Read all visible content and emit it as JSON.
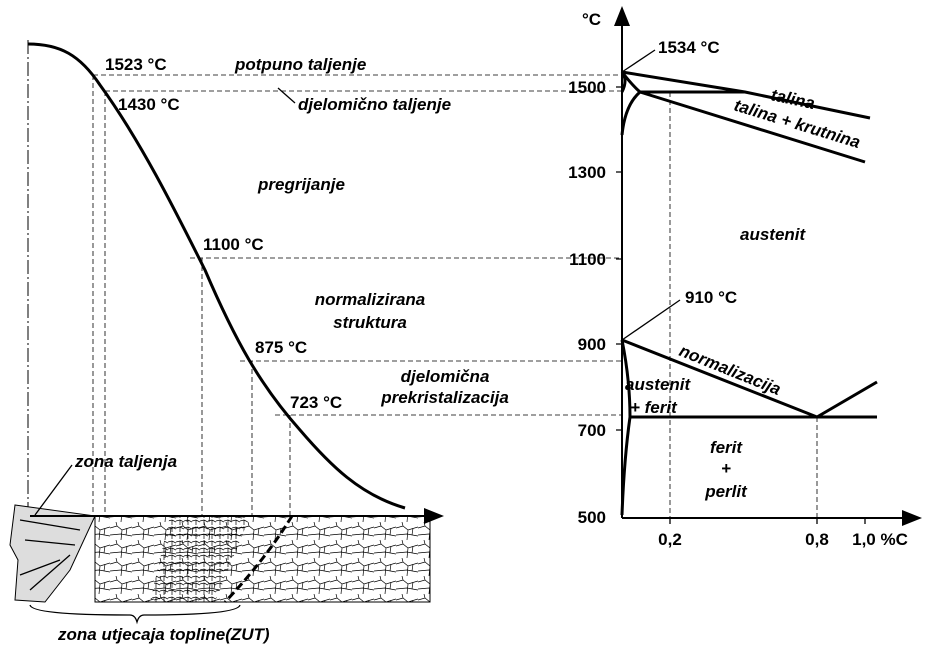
{
  "left": {
    "t1523": "1523 °C",
    "full_melt": "potpuno taljenje",
    "t1430": "1430 °C",
    "partial_melt": "djelomično taljenje",
    "overheat": "pregrijanje",
    "t1100": "1100 °C",
    "normalized_1": "normalizirana",
    "normalized_2": "struktura",
    "t875": "875 °C",
    "partial_recryst_1": "djelomična",
    "partial_recryst_2": "prekristalizacija",
    "t723": "723 °C",
    "fusion_zone": "zona taljenja",
    "haz": "zona utjecaja topline(ZUT)"
  },
  "right": {
    "axis_unit": "°C",
    "t1534": "1534 °C",
    "melt": "talina",
    "melt_solid": "talina + krutnina",
    "austenite": "austenit",
    "t910": "910 °C",
    "normalization": "normalizacija",
    "aus_ferrite_1": "austenit",
    "aus_ferrite_2": "+ ferit",
    "ferrite": "ferit",
    "plus": "+",
    "pearlite": "perlit",
    "yticks": [
      "500",
      "700",
      "900",
      "1100",
      "1300",
      "1500"
    ],
    "xticks": [
      "0,2",
      "0,8",
      "1,0 %C"
    ]
  }
}
